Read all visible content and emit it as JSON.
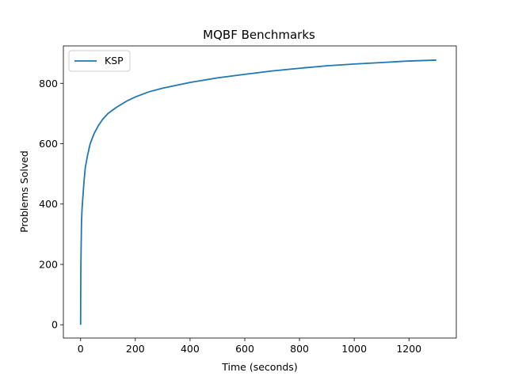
{
  "chart_data": {
    "type": "line",
    "title": "MQBF Benchmarks",
    "xlabel": "Time (seconds)",
    "ylabel": "Problems Solved",
    "xlim": [
      -63,
      1373
    ],
    "ylim": [
      -44,
      924
    ],
    "xticks": [
      0,
      200,
      400,
      600,
      800,
      1000,
      1200
    ],
    "yticks": [
      0,
      200,
      400,
      600,
      800
    ],
    "grid": false,
    "legend_position": "top-left",
    "series": [
      {
        "name": "KSP",
        "color": "#1f77b4",
        "x": [
          0,
          0.5,
          1,
          2,
          3,
          5,
          8,
          12,
          17,
          25,
          35,
          50,
          65,
          80,
          100,
          130,
          170,
          200,
          250,
          300,
          400,
          500,
          600,
          700,
          800,
          900,
          1000,
          1100,
          1200,
          1300
        ],
        "y": [
          0,
          120,
          200,
          260,
          330,
          380,
          420,
          470,
          520,
          560,
          600,
          635,
          660,
          680,
          700,
          720,
          742,
          755,
          772,
          784,
          803,
          818,
          830,
          841,
          850,
          858,
          864,
          869,
          874,
          877
        ]
      }
    ]
  }
}
